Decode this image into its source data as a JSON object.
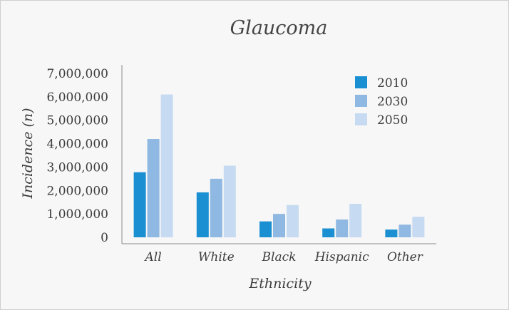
{
  "chart_data": {
    "type": "bar",
    "title": "Glaucoma",
    "xlabel": "Ethnicity",
    "ylabel": "Incidence (n)",
    "categories": [
      "All",
      "White",
      "Black",
      "Hispanic",
      "Other"
    ],
    "series": [
      {
        "name": "2010",
        "color": "#1a8fd1",
        "values": [
          2780000,
          1920000,
          680000,
          380000,
          330000
        ]
      },
      {
        "name": "2030",
        "color": "#8fb8e2",
        "values": [
          4200000,
          2500000,
          1000000,
          760000,
          540000
        ]
      },
      {
        "name": "2050",
        "color": "#c6dbf1",
        "values": [
          6100000,
          3060000,
          1380000,
          1430000,
          880000
        ]
      }
    ],
    "ylim": [
      0,
      7000000
    ],
    "yticks": [
      {
        "value": 0,
        "label": "0"
      },
      {
        "value": 1000000,
        "label": "1,000,000"
      },
      {
        "value": 2000000,
        "label": "2,000,000"
      },
      {
        "value": 3000000,
        "label": "3,000,000"
      },
      {
        "value": 4000000,
        "label": "4,000,000"
      },
      {
        "value": 5000000,
        "label": "5,000,000"
      },
      {
        "value": 6000000,
        "label": "6,000,000"
      },
      {
        "value": 7000000,
        "label": "7,000,000"
      }
    ],
    "grid": false,
    "legend_position": "top-right"
  }
}
